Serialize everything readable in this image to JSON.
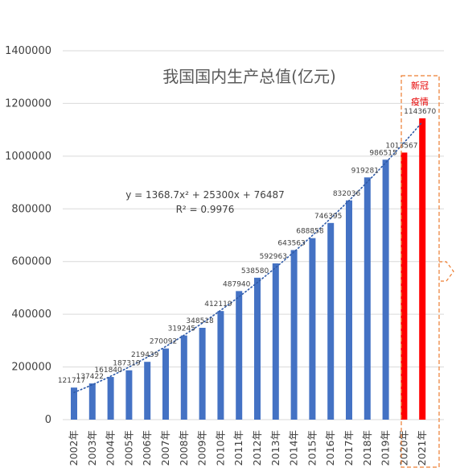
{
  "chart_data": {
    "type": "bar",
    "title": "我国国内生产总值(亿元)",
    "xlabel": "",
    "ylabel": "",
    "categories": [
      "2002年",
      "2003年",
      "2004年",
      "2005年",
      "2006年",
      "2007年",
      "2008年",
      "2009年",
      "2010年",
      "2011年",
      "2012年",
      "2013年",
      "2014年",
      "2015年",
      "2016年",
      "2017年",
      "2018年",
      "2019年",
      "2020年",
      "2021年"
    ],
    "values": [
      121717,
      137422,
      161840,
      187319,
      219439,
      270092,
      319245,
      348518,
      412119,
      487940,
      538580,
      592963,
      643563,
      688858,
      746395,
      832036,
      919281,
      986515,
      1013567,
      1143670
    ],
    "value_labels": [
      "121717",
      "137422",
      "161840",
      "187319",
      "219439",
      "270092",
      "319245",
      "348518",
      "412119",
      "487940",
      "538580",
      "592963",
      "643563",
      "688858",
      "746395",
      "832036",
      "919281",
      "986515",
      "1013567",
      "1143670"
    ],
    "ylim": [
      0,
      1400000
    ],
    "yticks": [
      0,
      200000,
      400000,
      600000,
      800000,
      1000000,
      1200000,
      1400000
    ],
    "ytick_labels": [
      "0",
      "200000",
      "400000",
      "600000",
      "800000",
      "1000000",
      "1200000",
      "1400000"
    ],
    "grid": true,
    "colors": {
      "bar_default": "#4472c4",
      "bar_highlight": "#ff0000",
      "trendline": "#2e5aa8",
      "annotation": "#ed7d31",
      "annotation_text": "#e60000",
      "grid": "#d9d9d9"
    },
    "highlighted_categories": [
      "2020年",
      "2021年"
    ],
    "trendline": {
      "type": "polynomial",
      "order": 2,
      "coefficients": [
        1368.7,
        25300,
        76487
      ],
      "style": "dotted",
      "equation": "y = 1368.7x² + 25300x + 76487",
      "r_squared": "R² = 0.9976"
    },
    "annotation": {
      "text_line1": "新冠",
      "text_line2": "疫情",
      "style": "dashed-box"
    }
  }
}
